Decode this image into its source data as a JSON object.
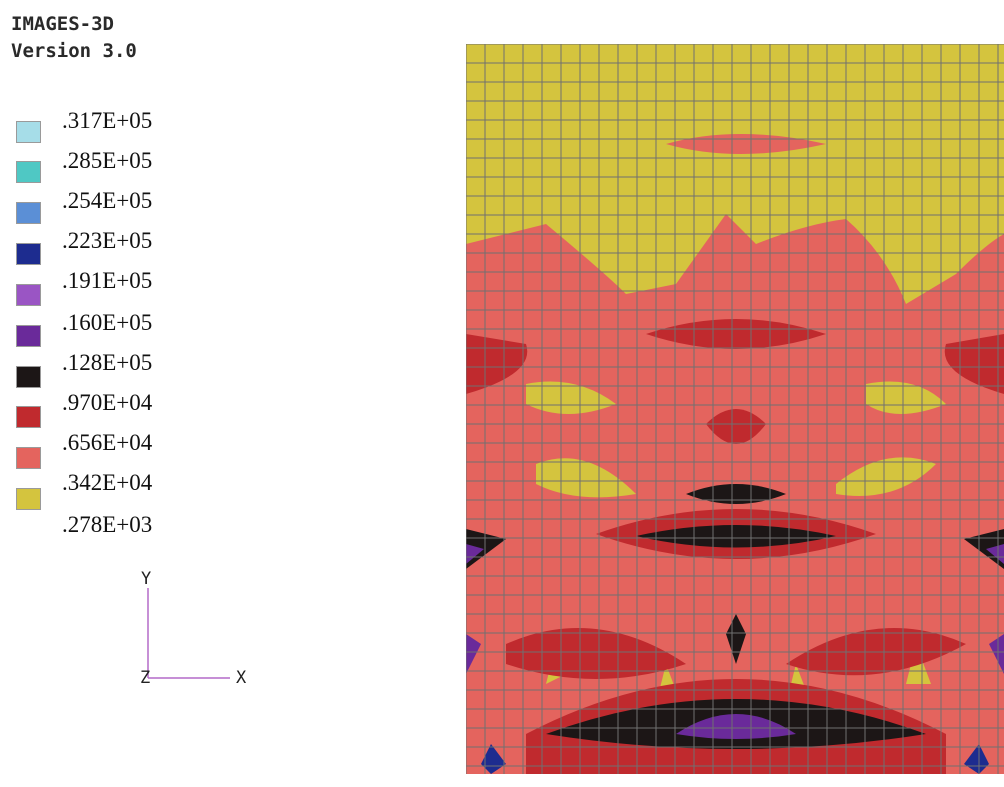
{
  "app": {
    "name": "IMAGES-3D",
    "version": "Version 3.0"
  },
  "legend": {
    "entries": [
      {
        "value": ".317E+05",
        "color": "#a6dde8"
      },
      {
        "value": ".285E+05",
        "color": "#4fc8c4"
      },
      {
        "value": ".254E+05",
        "color": "#5b8fd6"
      },
      {
        "value": ".223E+05",
        "color": "#1d2c8f"
      },
      {
        "value": ".191E+05",
        "color": "#9a55c4"
      },
      {
        "value": ".160E+05",
        "color": "#6a2a9a"
      },
      {
        "value": ".128E+05",
        "color": "#1c1616"
      },
      {
        "value": ".970E+04",
        "color": "#c02a2e"
      },
      {
        "value": ".656E+04",
        "color": "#e4645e"
      },
      {
        "value": ".342E+04",
        "color": "#d4c43e"
      },
      {
        "value": ".278E+03"
      }
    ]
  },
  "axes": {
    "y": "Y",
    "z": "Z",
    "x": "X"
  },
  "plot": {
    "grid_color": "#707070",
    "background_color": "#d4c43e"
  }
}
